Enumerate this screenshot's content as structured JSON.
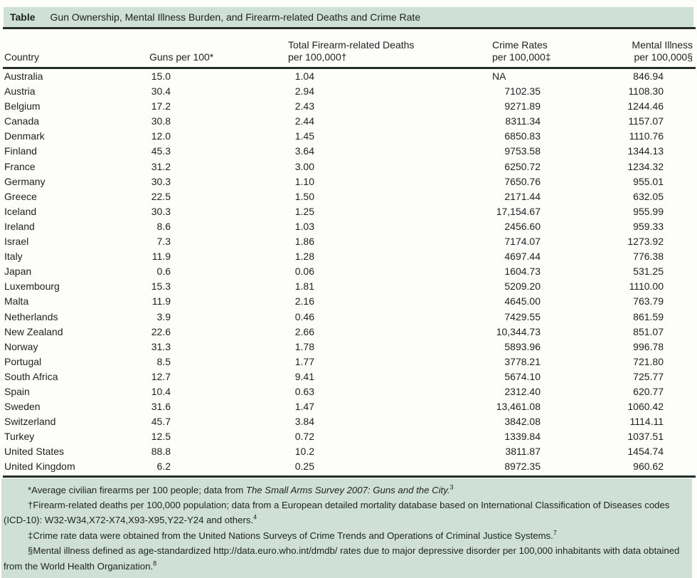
{
  "title_bar": {
    "label": "Table",
    "title": "Gun Ownership, Mental Illness Burden, and Firearm-related Deaths and Crime Rate"
  },
  "columns": [
    {
      "id": "country",
      "lines": [
        "Country"
      ]
    },
    {
      "id": "guns",
      "lines": [
        "Guns per 100*"
      ]
    },
    {
      "id": "deaths",
      "lines": [
        "Total Firearm-related Deaths",
        "per 100,000†"
      ]
    },
    {
      "id": "crime",
      "lines": [
        "Crime Rates",
        "per 100,000‡"
      ]
    },
    {
      "id": "mental",
      "lines": [
        "Mental Illness",
        "per 100,000§"
      ]
    }
  ],
  "rows": [
    {
      "country": "Australia",
      "guns": "15.0",
      "deaths": "1.04",
      "crime": "NA",
      "mental": "846.94"
    },
    {
      "country": "Austria",
      "guns": "30.4",
      "deaths": "2.94",
      "crime": "7102.35",
      "mental": "1108.30"
    },
    {
      "country": "Belgium",
      "guns": "17.2",
      "deaths": "2.43",
      "crime": "9271.89",
      "mental": "1244.46"
    },
    {
      "country": "Canada",
      "guns": "30.8",
      "deaths": "2.44",
      "crime": "8311.34",
      "mental": "1157.07"
    },
    {
      "country": "Denmark",
      "guns": "12.0",
      "deaths": "1.45",
      "crime": "6850.83",
      "mental": "1110.76"
    },
    {
      "country": "Finland",
      "guns": "45.3",
      "deaths": "3.64",
      "crime": "9753.58",
      "mental": "1344.13"
    },
    {
      "country": "France",
      "guns": "31.2",
      "deaths": "3.00",
      "crime": "6250.72",
      "mental": "1234.32"
    },
    {
      "country": "Germany",
      "guns": "30.3",
      "deaths": "1.10",
      "crime": "7650.76",
      "mental": "955.01"
    },
    {
      "country": "Greece",
      "guns": "22.5",
      "deaths": "1.50",
      "crime": "2171.44",
      "mental": "632.05"
    },
    {
      "country": "Iceland",
      "guns": "30.3",
      "deaths": "1.25",
      "crime": "17,154.67",
      "mental": "955.99"
    },
    {
      "country": "Ireland",
      "guns": "8.6",
      "deaths": "1.03",
      "crime": "2456.60",
      "mental": "959.33"
    },
    {
      "country": "Israel",
      "guns": "7.3",
      "deaths": "1.86",
      "crime": "7174.07",
      "mental": "1273.92"
    },
    {
      "country": "Italy",
      "guns": "11.9",
      "deaths": "1.28",
      "crime": "4697.44",
      "mental": "776.38"
    },
    {
      "country": "Japan",
      "guns": "0.6",
      "deaths": "0.06",
      "crime": "1604.73",
      "mental": "531.25"
    },
    {
      "country": "Luxembourg",
      "guns": "15.3",
      "deaths": "1.81",
      "crime": "5209.20",
      "mental": "1110.00"
    },
    {
      "country": "Malta",
      "guns": "11.9",
      "deaths": "2.16",
      "crime": "4645.00",
      "mental": "763.79"
    },
    {
      "country": "Netherlands",
      "guns": "3.9",
      "deaths": "0.46",
      "crime": "7429.55",
      "mental": "861.59"
    },
    {
      "country": "New Zealand",
      "guns": "22.6",
      "deaths": "2.66",
      "crime": "10,344.73",
      "mental": "851.07"
    },
    {
      "country": "Norway",
      "guns": "31.3",
      "deaths": "1.78",
      "crime": "5893.96",
      "mental": "996.78"
    },
    {
      "country": "Portugal",
      "guns": "8.5",
      "deaths": "1.77",
      "crime": "3778.21",
      "mental": "721.80"
    },
    {
      "country": "South Africa",
      "guns": "12.7",
      "deaths": "9.41",
      "crime": "5674.10",
      "mental": "725.77"
    },
    {
      "country": "Spain",
      "guns": "10.4",
      "deaths": "0.63",
      "crime": "2312.40",
      "mental": "620.77"
    },
    {
      "country": "Sweden",
      "guns": "31.6",
      "deaths": "1.47",
      "crime": "13,461.08",
      "mental": "1060.42"
    },
    {
      "country": "Switzerland",
      "guns": "45.7",
      "deaths": "3.84",
      "crime": "3842.08",
      "mental": "1114.11"
    },
    {
      "country": "Turkey",
      "guns": "12.5",
      "deaths": "0.72",
      "crime": "1339.84",
      "mental": "1037.51"
    },
    {
      "country": "United States",
      "guns": "88.8",
      "deaths": "10.2",
      "crime": "3811.87",
      "mental": "1454.74"
    },
    {
      "country": "United Kingdom",
      "guns": "6.2",
      "deaths": "0.25",
      "crime": "8972.35",
      "mental": "960.62"
    }
  ],
  "footnotes": [
    {
      "segments": [
        {
          "t": "*Average civilian firearms per 100 people; data from "
        },
        {
          "t": "The Small Arms Survey 2007: Guns and the City.",
          "i": true
        },
        {
          "t": "3",
          "sup": true
        }
      ]
    },
    {
      "segments": [
        {
          "t": "†Firearm-related deaths per 100,000 population; data from a European detailed mortality database based on International Classification of Diseases codes (ICD-10): W32-W34,X72-X74,X93-X95,Y22-Y24 and others."
        },
        {
          "t": "4",
          "sup": true
        }
      ]
    },
    {
      "segments": [
        {
          "t": "‡Crime rate data were obtained from the United Nations Surveys of Crime Trends and Operations of Criminal Justice Systems."
        },
        {
          "t": "7",
          "sup": true
        }
      ]
    },
    {
      "segments": [
        {
          "t": "§Mental illness defined as age-standardized http://data.euro.who.int/dmdb/ rates due to major depressive disorder per 100,000 inhabitants with data obtained from the World Health Organization."
        },
        {
          "t": "8",
          "sup": true
        }
      ]
    }
  ],
  "colors": {
    "title_bar_bg": "#cfe1d7",
    "footnote_bg": "#cfe1d7",
    "rule": "#272e2a",
    "text": "#1d211e"
  }
}
